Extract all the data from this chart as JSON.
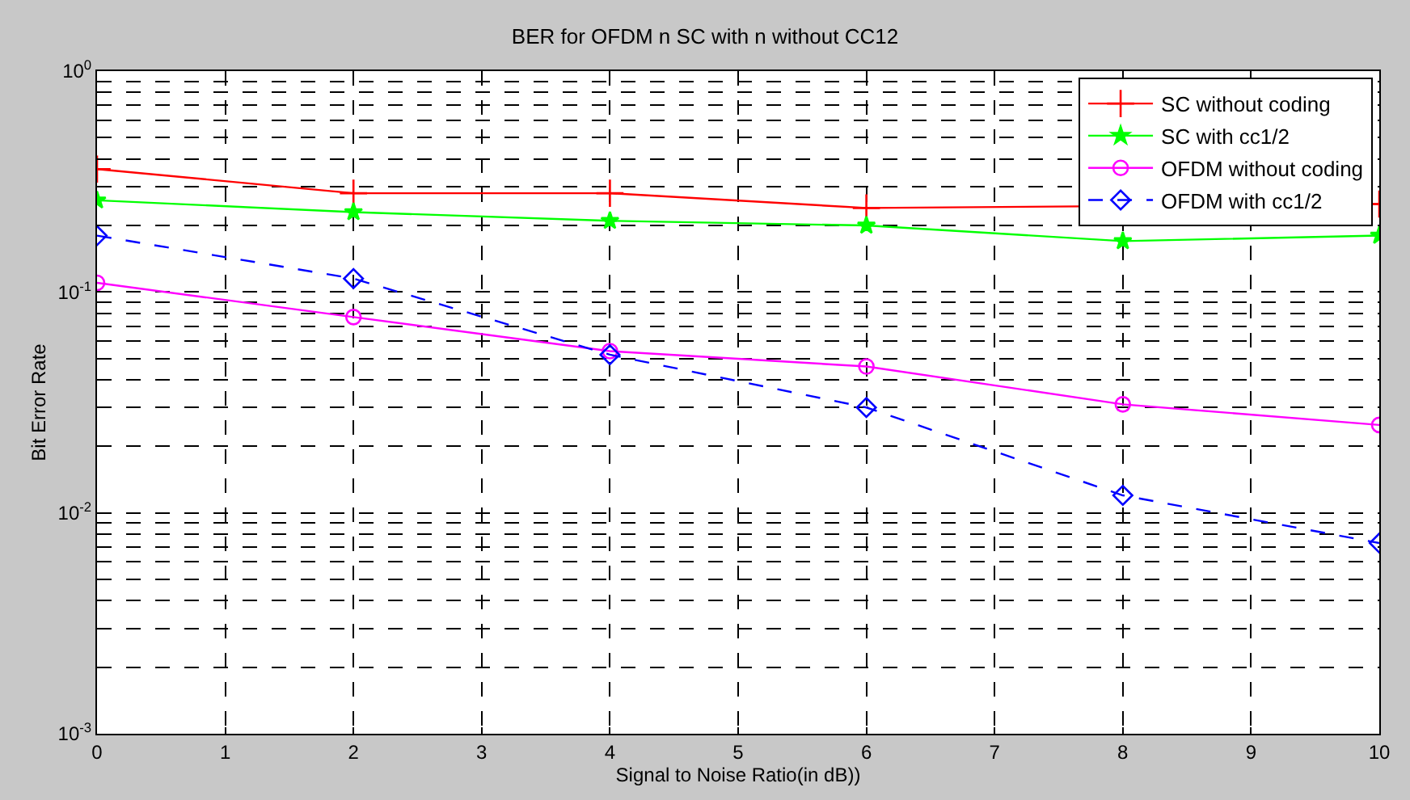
{
  "chart_data": {
    "type": "line",
    "title": "BER for OFDM n SC with n without CC12",
    "xlabel": "Signal to Noise Ratio(in dB))",
    "ylabel": "Bit Error Rate",
    "x": [
      0,
      2,
      4,
      6,
      8,
      10
    ],
    "series": [
      {
        "name": "SC without coding",
        "color": "#ff0000",
        "marker": "cross",
        "line_style": "solid",
        "values": [
          0.36,
          0.28,
          0.28,
          0.24,
          null,
          0.25
        ]
      },
      {
        "name": "SC with cc1/2",
        "color": "#00ff00",
        "marker": "star",
        "line_style": "solid",
        "values": [
          0.26,
          0.23,
          0.21,
          0.2,
          0.17,
          0.18
        ]
      },
      {
        "name": "OFDM without coding",
        "color": "#ff00ff",
        "marker": "circle",
        "line_style": "solid",
        "values": [
          0.11,
          0.077,
          0.054,
          0.046,
          0.031,
          0.025
        ]
      },
      {
        "name": "OFDM with cc1/2",
        "color": "#0000ff",
        "marker": "diamond",
        "line_style": "dashed",
        "values": [
          0.18,
          0.115,
          0.052,
          0.03,
          0.012,
          0.0073
        ]
      }
    ],
    "log": "y",
    "xlim": [
      0,
      10
    ],
    "xticks": [
      0,
      1,
      2,
      3,
      4,
      5,
      6,
      7,
      8,
      9,
      10
    ],
    "ylim": [
      0.001,
      1
    ],
    "yticks": [
      {
        "value": 0.001,
        "label": "10$^{-3}$"
      },
      {
        "value": 0.002,
        "label": null
      },
      {
        "value": 0.003,
        "label": null
      },
      {
        "value": 0.004,
        "label": null
      },
      {
        "value": 0.005,
        "label": null
      },
      {
        "value": 0.006,
        "label": null
      },
      {
        "value": 0.007,
        "label": null
      },
      {
        "value": 0.008,
        "label": null
      },
      {
        "value": 0.009,
        "label": null
      },
      {
        "value": 0.01,
        "label": "10$^{-2}$"
      },
      {
        "value": 0.02,
        "label": null
      },
      {
        "value": 0.03,
        "label": null
      },
      {
        "value": 0.04,
        "label": null
      },
      {
        "value": 0.05,
        "label": null
      },
      {
        "value": 0.06,
        "label": null
      },
      {
        "value": 0.07,
        "label": null
      },
      {
        "value": 0.08,
        "label": null
      },
      {
        "value": 0.09,
        "label": null
      },
      {
        "value": 0.1,
        "label": "10$^{-1}$"
      },
      {
        "value": 0.2,
        "label": null
      },
      {
        "value": 0.3,
        "label": null
      },
      {
        "value": 0.4,
        "label": null
      },
      {
        "value": 0.5,
        "label": null
      },
      {
        "value": 0.6,
        "label": null
      },
      {
        "value": 0.7,
        "label": null
      },
      {
        "value": 0.8,
        "label": null
      },
      {
        "value": 0.9,
        "label": null
      },
      {
        "value": 1,
        "label": "10$^{0}$"
      }
    ],
    "grid": true,
    "legend": "top right"
  }
}
